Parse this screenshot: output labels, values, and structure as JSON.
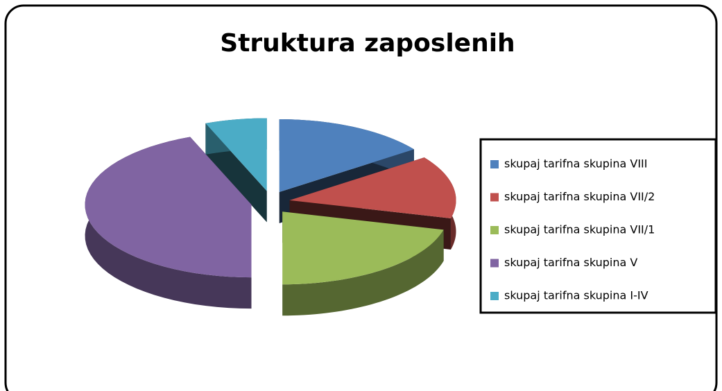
{
  "chart_data": {
    "type": "pie3d",
    "title": "Struktura zaposlenih",
    "categories": [
      "skupaj tarifna skupina VIII",
      "skupaj tarifna skupina VII/2",
      "skupaj tarifna skupina VII/1",
      "skupaj tarifna skupina V",
      "skupaj tarifna skupina I-IV"
    ],
    "values": [
      15,
      14,
      21,
      44,
      6
    ],
    "colors": [
      "#4f81bd",
      "#c0504d",
      "#9bbb59",
      "#8064a2",
      "#4bacc6"
    ],
    "legend": "right"
  }
}
